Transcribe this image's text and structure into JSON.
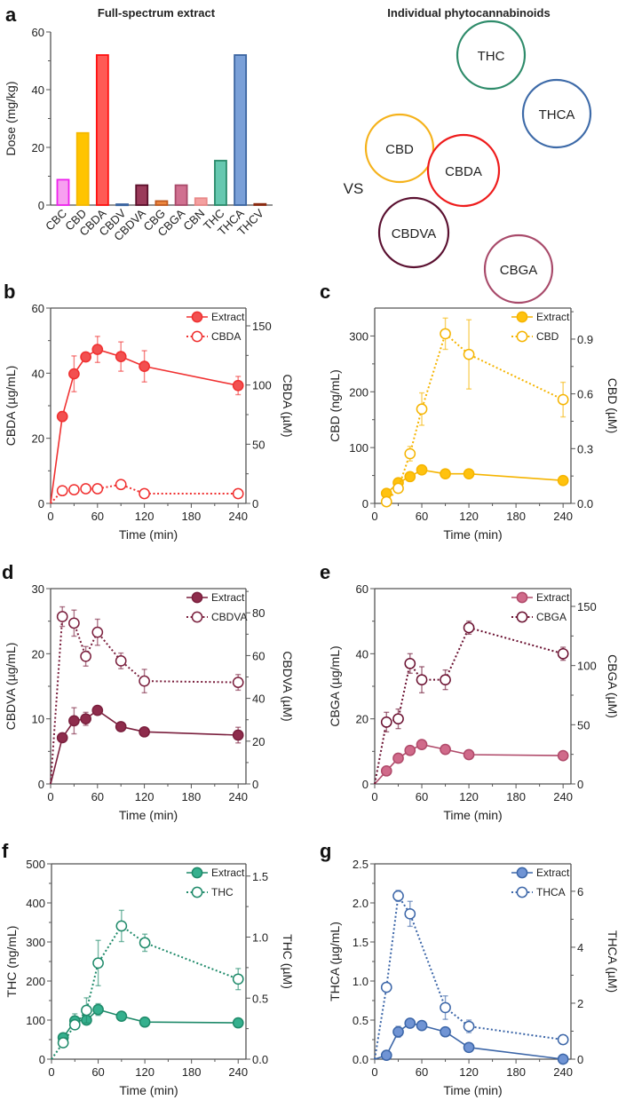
{
  "chart_data": [
    {
      "panel": "a",
      "type": "bar",
      "title": "Full-spectrum extract",
      "ylabel": "Dose (mg/kg)",
      "ylim": [
        0,
        60
      ],
      "yticks": [
        "0",
        "20",
        "40",
        "60"
      ],
      "categories": [
        "CBC",
        "CBD",
        "CBDA",
        "CBDV",
        "CBDVA",
        "CBG",
        "CBGA",
        "CBN",
        "THC",
        "THCA",
        "THCV"
      ],
      "values": [
        8.8,
        25,
        52,
        0.3,
        6.9,
        1.4,
        6.9,
        2.4,
        15.4,
        52,
        0.4
      ],
      "fill_colors": [
        "#f7a0f0",
        "#ffc400",
        "#ff5a55",
        "#6a8fd0",
        "#9a3a5a",
        "#ee8840",
        "#d07090",
        "#f4a0a0",
        "#66c8b0",
        "#7aa0d8",
        "#b04020"
      ],
      "stroke_colors": [
        "#ee22ee",
        "#f5b800",
        "#ff1010",
        "#3a64a0",
        "#5a0f2a",
        "#c05a20",
        "#a84a6a",
        "#e88888",
        "#2a8a6a",
        "#3a64a0",
        "#8a2a10"
      ]
    },
    {
      "panel": "b",
      "type": "line",
      "xlabel": "Time (min)",
      "xlim": [
        0,
        250
      ],
      "xticks": [
        "0",
        "60",
        "120",
        "180",
        "240"
      ],
      "ylabel": "CBDA (µg/mL)",
      "ylim": [
        0,
        60
      ],
      "yticks": [
        "0",
        "20",
        "40",
        "60"
      ],
      "ylabel_right": "CBDA (µM)",
      "ylim_right": [
        0,
        165
      ],
      "yticks_right": [
        "0",
        "50",
        "100",
        "150"
      ],
      "legend": "top-right",
      "series": [
        {
          "name": "Extract",
          "style": "solid-filled",
          "color": "#f03030",
          "fill": "#f25050",
          "x": [
            0,
            15,
            30,
            45,
            60,
            90,
            120,
            240
          ],
          "y": [
            0,
            26.7,
            39.8,
            45,
            47.3,
            45.1,
            42.1,
            36.2
          ],
          "err": [
            0,
            1.5,
            5.5,
            1.2,
            4,
            4.5,
            4.8,
            2.8
          ]
        },
        {
          "name": "CBDA",
          "style": "dotted-open",
          "color": "#f03030",
          "fill": "#ffffff",
          "x": [
            0,
            15,
            30,
            45,
            60,
            90,
            120,
            240
          ],
          "y": [
            0,
            3.9,
            4.2,
            4.5,
            4.5,
            5.8,
            3.0,
            3.0
          ],
          "err": [
            0,
            0.3,
            0.3,
            0.3,
            0.3,
            0.3,
            0.3,
            0.3
          ]
        }
      ]
    },
    {
      "panel": "c",
      "type": "line",
      "xlabel": "Time (min)",
      "xlim": [
        0,
        250
      ],
      "xticks": [
        "0",
        "60",
        "120",
        "180",
        "240"
      ],
      "ylabel": "CBD (ng/mL)",
      "ylim": [
        0,
        350
      ],
      "yticks": [
        "0",
        "100",
        "200",
        "300"
      ],
      "ylabel_right": "CBD (µM)",
      "ylim_right": [
        0,
        1.07
      ],
      "yticks_right": [
        "0.0",
        "0.3",
        "0.6",
        "0.9"
      ],
      "legend": "top-right",
      "series": [
        {
          "name": "Extract",
          "style": "solid-filled",
          "color": "#f5b400",
          "fill": "#ffc20e",
          "x": [
            15,
            30,
            45,
            60,
            90,
            120,
            240
          ],
          "y": [
            18,
            37,
            48,
            60,
            53,
            53,
            41
          ],
          "err": [
            3,
            3,
            3,
            3,
            3,
            3,
            8
          ]
        },
        {
          "name": "CBD",
          "style": "dotted-open",
          "color": "#f5b400",
          "fill": "#ffffff",
          "x": [
            15,
            30,
            45,
            60,
            90,
            120,
            240
          ],
          "y": [
            3,
            27,
            89,
            169,
            304,
            267,
            186
          ],
          "err": [
            2,
            4,
            13,
            29,
            28,
            62,
            31
          ]
        }
      ]
    },
    {
      "panel": "d",
      "type": "line",
      "xlabel": "Time (min)",
      "xlim": [
        0,
        250
      ],
      "xticks": [
        "0",
        "60",
        "120",
        "180",
        "240"
      ],
      "ylabel": "CBDVA (µg/mL)",
      "ylim": [
        0,
        30
      ],
      "yticks": [
        "0",
        "10",
        "20",
        "30"
      ],
      "ylabel_right": "CBDVA (µM)",
      "ylim_right": [
        0,
        91.3
      ],
      "yticks_right": [
        "0",
        "20",
        "40",
        "60",
        "80"
      ],
      "legend": "top-right",
      "series": [
        {
          "name": "Extract",
          "style": "solid-filled",
          "color": "#7a1f3d",
          "fill": "#8e2c4c",
          "x": [
            0,
            15,
            30,
            45,
            60,
            90,
            120,
            240
          ],
          "y": [
            0,
            7.1,
            9.7,
            10,
            11.3,
            8.8,
            8,
            7.5
          ],
          "err": [
            0,
            0.4,
            2,
            1,
            0.5,
            0.5,
            0.3,
            1.2
          ]
        },
        {
          "name": "CBDVA",
          "style": "dotted-open",
          "color": "#7a1f3d",
          "fill": "#ffffff",
          "x": [
            0,
            15,
            30,
            45,
            60,
            90,
            120,
            240
          ],
          "y": [
            0,
            25.7,
            24.7,
            19.6,
            23.3,
            18.9,
            15.8,
            15.6
          ],
          "err": [
            0,
            1.5,
            2,
            1.5,
            2,
            1.2,
            1.8,
            1.2
          ]
        }
      ]
    },
    {
      "panel": "e",
      "type": "line",
      "xlabel": "Time (min)",
      "xlim": [
        0,
        250
      ],
      "xticks": [
        "0",
        "60",
        "120",
        "180",
        "240"
      ],
      "ylabel": "CBGA (µg/mL)",
      "ylim": [
        0,
        60
      ],
      "yticks": [
        "0",
        "20",
        "40",
        "60"
      ],
      "ylabel_right": "CBGA (µM)",
      "ylim_right": [
        0,
        165
      ],
      "yticks_right": [
        "0",
        "50",
        "100",
        "150"
      ],
      "legend": "top-right",
      "series": [
        {
          "name": "Extract",
          "style": "solid-filled",
          "color": "#b04a6a",
          "fill": "#d06a8a",
          "x": [
            0,
            15,
            30,
            45,
            60,
            90,
            120,
            240
          ],
          "y": [
            0,
            4,
            7.9,
            10.3,
            12.1,
            10.6,
            9,
            8.7
          ],
          "err": [
            0,
            0.4,
            0.4,
            0.4,
            0.4,
            0.4,
            0.4,
            0.4
          ]
        },
        {
          "name": "CBGA",
          "style": "dotted-open",
          "color": "#6a1030",
          "fill": "#ffffff",
          "x": [
            0,
            15,
            30,
            45,
            60,
            90,
            120,
            240
          ],
          "y": [
            0,
            19,
            20,
            37,
            32,
            32,
            48,
            40
          ],
          "err": [
            0,
            3,
            3,
            3,
            4,
            3,
            2,
            2
          ]
        }
      ]
    },
    {
      "panel": "f",
      "type": "line",
      "xlabel": "Time (min)",
      "xlim": [
        0,
        250
      ],
      "xticks": [
        "0",
        "60",
        "120",
        "180",
        "240"
      ],
      "ylabel": "THC (ng/mL)",
      "ylim": [
        0,
        500
      ],
      "yticks": [
        "0",
        "100",
        "200",
        "300",
        "400",
        "500"
      ],
      "ylabel_right": "THC (µM)",
      "ylim_right": [
        0,
        1.6
      ],
      "yticks_right": [
        "0.0",
        "0.5",
        "1.0",
        "1.5"
      ],
      "legend": "top-right",
      "series": [
        {
          "name": "Extract",
          "style": "solid-filled",
          "color": "#1f8a6a",
          "fill": "#35b08e",
          "x": [
            15,
            30,
            45,
            60,
            90,
            120,
            240
          ],
          "y": [
            55,
            98,
            100,
            127,
            110,
            95,
            93
          ],
          "err": [
            10,
            18,
            5,
            15,
            5,
            5,
            10
          ]
        },
        {
          "name": "THC",
          "style": "dotted-open",
          "color": "#1f8a6a",
          "fill": "#ffffff",
          "x": [
            0,
            15,
            30,
            45,
            60,
            90,
            120,
            240
          ],
          "y": [
            0,
            42,
            88,
            125,
            246,
            341,
            298,
            205
          ],
          "err": [
            0,
            5,
            10,
            32,
            58,
            40,
            22,
            27
          ]
        }
      ]
    },
    {
      "panel": "g",
      "type": "line",
      "xlabel": "Time (min)",
      "xlim": [
        0,
        250
      ],
      "xticks": [
        "0",
        "60",
        "120",
        "180",
        "240"
      ],
      "ylabel": "THCA (µg/mL)",
      "ylim": [
        0,
        2.5
      ],
      "yticks": [
        "0.0",
        "0.5",
        "1.0",
        "1.5",
        "2.0",
        "2.5"
      ],
      "ylabel_right": "THCA (µM)",
      "ylim_right": [
        0,
        6.98
      ],
      "yticks_right": [
        "0",
        "2",
        "4",
        "6"
      ],
      "legend": "top-right",
      "series": [
        {
          "name": "Extract",
          "style": "solid-filled",
          "color": "#3c66a8",
          "fill": "#7094d4",
          "x": [
            0,
            15,
            30,
            45,
            60,
            90,
            120,
            240
          ],
          "y": [
            0,
            0.05,
            0.35,
            0.46,
            0.43,
            0.35,
            0.15,
            0
          ],
          "err": [
            0,
            0.02,
            0.07,
            0.05,
            0.05,
            0.05,
            0.03,
            0.02
          ]
        },
        {
          "name": "THCA",
          "style": "dotted-open",
          "color": "#3c66a8",
          "fill": "#ffffff",
          "x": [
            0,
            15,
            30,
            45,
            90,
            120,
            240
          ],
          "y": [
            0,
            0.92,
            2.09,
            1.86,
            0.66,
            0.42,
            0.25
          ],
          "err": [
            0,
            0.04,
            0.07,
            0.16,
            0.15,
            0.08,
            0.06
          ]
        }
      ]
    }
  ],
  "individual": {
    "title": "Individual phytocannabinoids",
    "vs": "VS",
    "circles": [
      {
        "label": "THC",
        "color": "#2e8b6a"
      },
      {
        "label": "CBD",
        "color": "#f5b21b"
      },
      {
        "label": "THCA",
        "color": "#3d6aa8"
      },
      {
        "label": "CBDA",
        "color": "#ee1c1c"
      },
      {
        "label": "CBDVA",
        "color": "#5a1030"
      },
      {
        "label": "CBGA",
        "color": "#a84a6a"
      }
    ]
  }
}
